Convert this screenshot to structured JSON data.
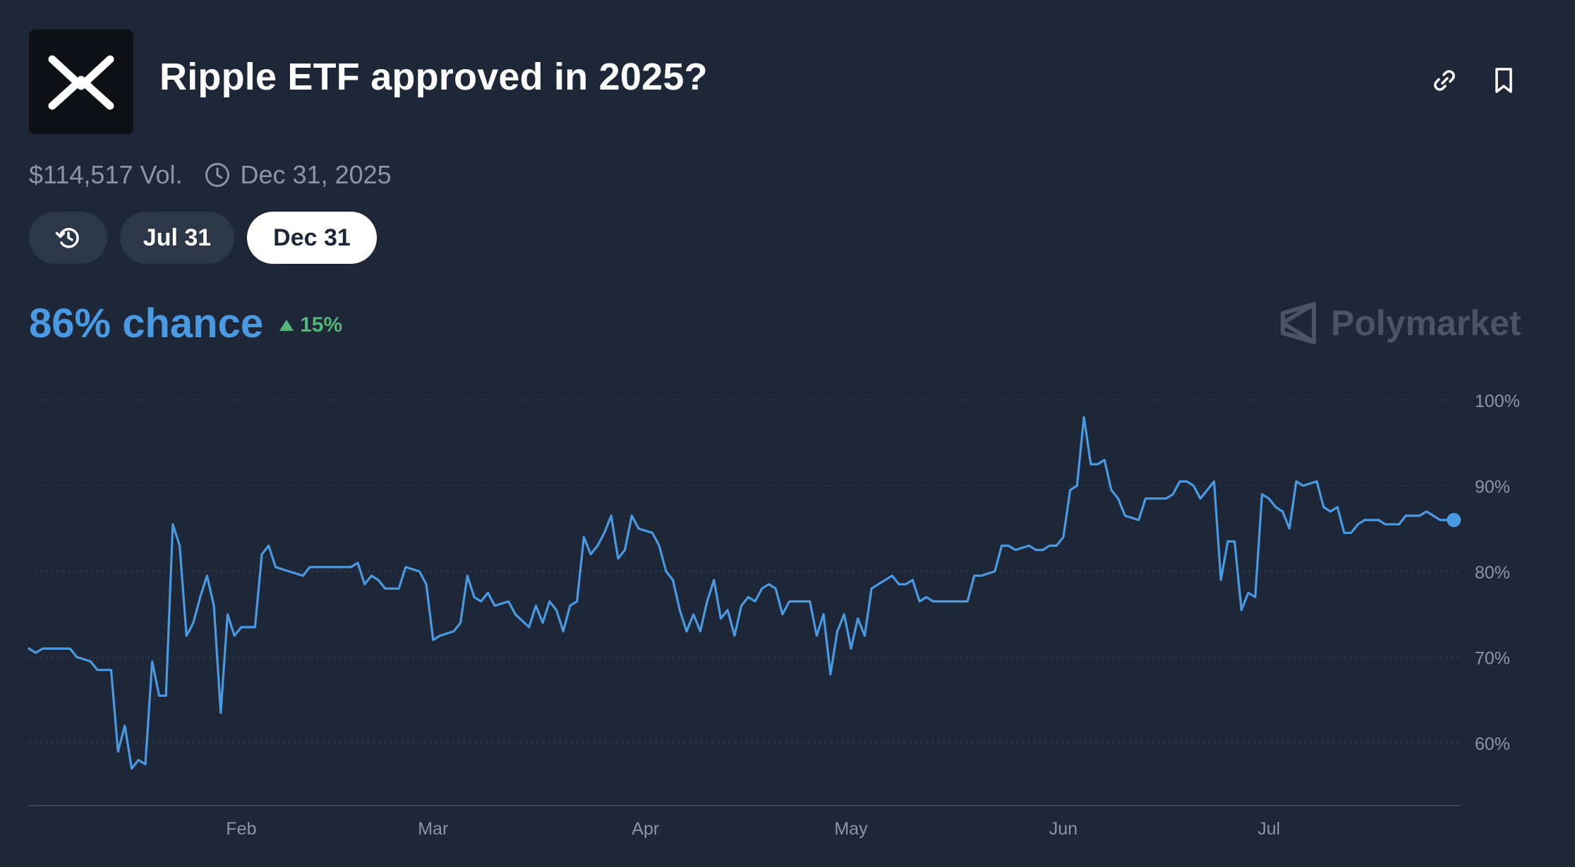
{
  "header": {
    "title": "Ripple ETF approved in 2025?",
    "logo_icon": "xrp-x-logo",
    "link_icon": "link-icon",
    "bookmark_icon": "bookmark-icon"
  },
  "meta": {
    "volume": "$114,517 Vol.",
    "end_date": "Dec 31, 2025",
    "clock_icon": "clock-icon"
  },
  "date_tabs": {
    "history_icon": "history-icon",
    "items": [
      {
        "label": "Jul 31",
        "selected": false
      },
      {
        "label": "Dec 31",
        "selected": true
      }
    ]
  },
  "summary": {
    "chance": "86% chance",
    "delta": "15%",
    "delta_direction": "up",
    "brand": "Polymarket"
  },
  "colors": {
    "background": "#1e2737",
    "line": "#4a9ae3",
    "positive": "#52b67a",
    "muted_text": "#8b95a5",
    "pill": "#2c3748"
  },
  "chart_data": {
    "type": "line",
    "x_tick_labels": [
      "Feb",
      "Mar",
      "Apr",
      "May",
      "Jun",
      "Jul"
    ],
    "x_tick_dates": [
      "2025-02-01",
      "2025-03-01",
      "2025-04-01",
      "2025-05-01",
      "2025-06-01",
      "2025-07-01"
    ],
    "x_range": [
      "2025-01-01",
      "2025-07-29"
    ],
    "y_tick_labels": [
      "100%",
      "90%",
      "80%",
      "70%",
      "60%"
    ],
    "y_ticks": [
      100,
      90,
      80,
      70,
      60
    ],
    "ylim": [
      53,
      100
    ],
    "grid": true,
    "axis_side": "right",
    "series": [
      {
        "values": [
          [
            "2025-01-01",
            71
          ],
          [
            "2025-01-02",
            70.5
          ],
          [
            "2025-01-03",
            71
          ],
          [
            "2025-01-05",
            71
          ],
          [
            "2025-01-07",
            71
          ],
          [
            "2025-01-08",
            70
          ],
          [
            "2025-01-10",
            69.5
          ],
          [
            "2025-01-11",
            68.5
          ],
          [
            "2025-01-13",
            68.5
          ],
          [
            "2025-01-14",
            59
          ],
          [
            "2025-01-15",
            62
          ],
          [
            "2025-01-16",
            57
          ],
          [
            "2025-01-17",
            58
          ],
          [
            "2025-01-18",
            57.5
          ],
          [
            "2025-01-19",
            69.5
          ],
          [
            "2025-01-20",
            65.5
          ],
          [
            "2025-01-21",
            65.5
          ],
          [
            "2025-01-22",
            85.5
          ],
          [
            "2025-01-23",
            83
          ],
          [
            "2025-01-24",
            72.5
          ],
          [
            "2025-01-25",
            74
          ],
          [
            "2025-01-26",
            77
          ],
          [
            "2025-01-27",
            79.5
          ],
          [
            "2025-01-28",
            76
          ],
          [
            "2025-01-29",
            63.5
          ],
          [
            "2025-01-30",
            75
          ],
          [
            "2025-01-31",
            72.5
          ],
          [
            "2025-02-01",
            73.5
          ],
          [
            "2025-02-02",
            73.5
          ],
          [
            "2025-02-03",
            73.5
          ],
          [
            "2025-02-04",
            82
          ],
          [
            "2025-02-05",
            83
          ],
          [
            "2025-02-06",
            80.5
          ],
          [
            "2025-02-08",
            80
          ],
          [
            "2025-02-10",
            79.5
          ],
          [
            "2025-02-11",
            80.5
          ],
          [
            "2025-02-14",
            80.5
          ],
          [
            "2025-02-17",
            80.5
          ],
          [
            "2025-02-18",
            81
          ],
          [
            "2025-02-19",
            78.5
          ],
          [
            "2025-02-20",
            79.5
          ],
          [
            "2025-02-21",
            79
          ],
          [
            "2025-02-22",
            78
          ],
          [
            "2025-02-24",
            78
          ],
          [
            "2025-02-25",
            80.5
          ],
          [
            "2025-02-27",
            80
          ],
          [
            "2025-02-28",
            78.5
          ],
          [
            "2025-03-01",
            72
          ],
          [
            "2025-03-02",
            72.5
          ],
          [
            "2025-03-04",
            73
          ],
          [
            "2025-03-05",
            74
          ],
          [
            "2025-03-06",
            79.5
          ],
          [
            "2025-03-07",
            77
          ],
          [
            "2025-03-08",
            76.5
          ],
          [
            "2025-03-09",
            77.5
          ],
          [
            "2025-03-10",
            76
          ],
          [
            "2025-03-12",
            76.5
          ],
          [
            "2025-03-13",
            75
          ],
          [
            "2025-03-15",
            73.5
          ],
          [
            "2025-03-16",
            76
          ],
          [
            "2025-03-17",
            74
          ],
          [
            "2025-03-18",
            76.5
          ],
          [
            "2025-03-19",
            75.5
          ],
          [
            "2025-03-20",
            73
          ],
          [
            "2025-03-21",
            76
          ],
          [
            "2025-03-22",
            76.5
          ],
          [
            "2025-03-23",
            84
          ],
          [
            "2025-03-24",
            82
          ],
          [
            "2025-03-25",
            83
          ],
          [
            "2025-03-26",
            84.5
          ],
          [
            "2025-03-27",
            86.5
          ],
          [
            "2025-03-28",
            81.5
          ],
          [
            "2025-03-29",
            82.5
          ],
          [
            "2025-03-30",
            86.5
          ],
          [
            "2025-03-31",
            85
          ],
          [
            "2025-04-02",
            84.5
          ],
          [
            "2025-04-03",
            83
          ],
          [
            "2025-04-04",
            80
          ],
          [
            "2025-04-05",
            79
          ],
          [
            "2025-04-06",
            75.5
          ],
          [
            "2025-04-07",
            73
          ],
          [
            "2025-04-08",
            75
          ],
          [
            "2025-04-09",
            73
          ],
          [
            "2025-04-10",
            76.5
          ],
          [
            "2025-04-11",
            79
          ],
          [
            "2025-04-12",
            74.5
          ],
          [
            "2025-04-13",
            75.5
          ],
          [
            "2025-04-14",
            72.5
          ],
          [
            "2025-04-15",
            76
          ],
          [
            "2025-04-16",
            77
          ],
          [
            "2025-04-17",
            76.5
          ],
          [
            "2025-04-18",
            78
          ],
          [
            "2025-04-19",
            78.5
          ],
          [
            "2025-04-20",
            78
          ],
          [
            "2025-04-21",
            75
          ],
          [
            "2025-04-22",
            76.5
          ],
          [
            "2025-04-23",
            76.5
          ],
          [
            "2025-04-25",
            76.5
          ],
          [
            "2025-04-26",
            72.5
          ],
          [
            "2025-04-27",
            75
          ],
          [
            "2025-04-28",
            68
          ],
          [
            "2025-04-29",
            73
          ],
          [
            "2025-04-30",
            75
          ],
          [
            "2025-05-01",
            71
          ],
          [
            "2025-05-02",
            74.5
          ],
          [
            "2025-05-03",
            72.5
          ],
          [
            "2025-05-04",
            78
          ],
          [
            "2025-05-05",
            78.5
          ],
          [
            "2025-05-06",
            79
          ],
          [
            "2025-05-07",
            79.5
          ],
          [
            "2025-05-08",
            78.5
          ],
          [
            "2025-05-09",
            78.5
          ],
          [
            "2025-05-10",
            79
          ],
          [
            "2025-05-11",
            76.5
          ],
          [
            "2025-05-12",
            77
          ],
          [
            "2025-05-13",
            76.5
          ],
          [
            "2025-05-15",
            76.5
          ],
          [
            "2025-05-18",
            76.5
          ],
          [
            "2025-05-19",
            79.5
          ],
          [
            "2025-05-20",
            79.5
          ],
          [
            "2025-05-22",
            80
          ],
          [
            "2025-05-23",
            83
          ],
          [
            "2025-05-24",
            83
          ],
          [
            "2025-05-25",
            82.5
          ],
          [
            "2025-05-27",
            83
          ],
          [
            "2025-05-28",
            82.5
          ],
          [
            "2025-05-29",
            82.5
          ],
          [
            "2025-05-30",
            83
          ],
          [
            "2025-05-31",
            83
          ],
          [
            "2025-06-01",
            84
          ],
          [
            "2025-06-02",
            89.5
          ],
          [
            "2025-06-03",
            90
          ],
          [
            "2025-06-04",
            98
          ],
          [
            "2025-06-05",
            92.5
          ],
          [
            "2025-06-06",
            92.5
          ],
          [
            "2025-06-07",
            93
          ],
          [
            "2025-06-08",
            89.5
          ],
          [
            "2025-06-09",
            88.5
          ],
          [
            "2025-06-10",
            86.5
          ],
          [
            "2025-06-12",
            86
          ],
          [
            "2025-06-13",
            88.5
          ],
          [
            "2025-06-15",
            88.5
          ],
          [
            "2025-06-16",
            88.5
          ],
          [
            "2025-06-17",
            89
          ],
          [
            "2025-06-18",
            90.5
          ],
          [
            "2025-06-19",
            90.5
          ],
          [
            "2025-06-20",
            90
          ],
          [
            "2025-06-21",
            88.5
          ],
          [
            "2025-06-22",
            89.5
          ],
          [
            "2025-06-23",
            90.5
          ],
          [
            "2025-06-24",
            79
          ],
          [
            "2025-06-25",
            83.5
          ],
          [
            "2025-06-26",
            83.5
          ],
          [
            "2025-06-27",
            75.5
          ],
          [
            "2025-06-28",
            77.5
          ],
          [
            "2025-06-29",
            77
          ],
          [
            "2025-06-30",
            89
          ],
          [
            "2025-07-01",
            88.5
          ],
          [
            "2025-07-02",
            87.5
          ],
          [
            "2025-07-03",
            87
          ],
          [
            "2025-07-04",
            85
          ],
          [
            "2025-07-05",
            90.5
          ],
          [
            "2025-07-06",
            90
          ],
          [
            "2025-07-08",
            90.5
          ],
          [
            "2025-07-09",
            87.5
          ],
          [
            "2025-07-10",
            87
          ],
          [
            "2025-07-11",
            87.5
          ],
          [
            "2025-07-12",
            84.5
          ],
          [
            "2025-07-13",
            84.5
          ],
          [
            "2025-07-14",
            85.5
          ],
          [
            "2025-07-15",
            86
          ],
          [
            "2025-07-17",
            86
          ],
          [
            "2025-07-18",
            85.5
          ],
          [
            "2025-07-20",
            85.5
          ],
          [
            "2025-07-21",
            86.5
          ],
          [
            "2025-07-23",
            86.5
          ],
          [
            "2025-07-24",
            87
          ],
          [
            "2025-07-25",
            86.5
          ],
          [
            "2025-07-26",
            86
          ],
          [
            "2025-07-27",
            86
          ],
          [
            "2025-07-28",
            86
          ]
        ]
      }
    ]
  }
}
